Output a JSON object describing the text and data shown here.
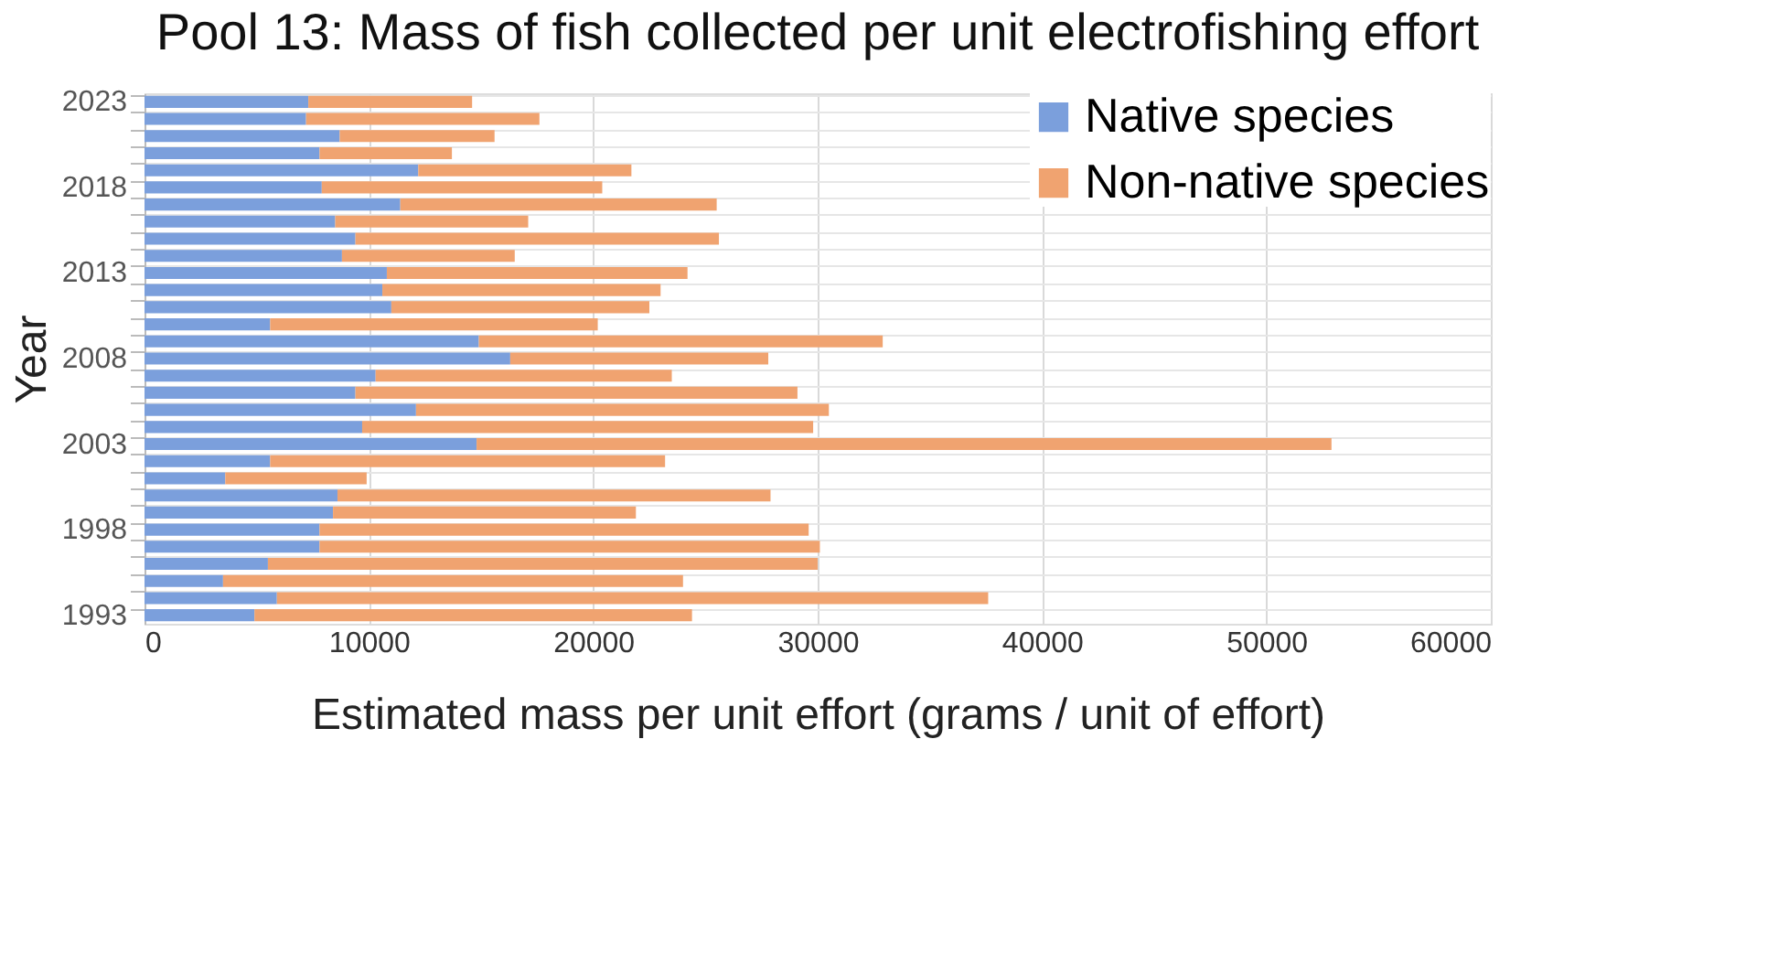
{
  "chart_data": {
    "type": "bar",
    "orientation": "horizontal",
    "stacked": true,
    "title": "Pool 13: Mass of fish collected per unit electrofishing effort",
    "xlabel": "Estimated mass per unit effort (grams / unit of effort)",
    "ylabel": "Year",
    "categories": [
      "2023",
      null,
      null,
      null,
      null,
      "2018",
      null,
      null,
      null,
      null,
      "2013",
      null,
      null,
      null,
      null,
      "2008",
      null,
      null,
      null,
      null,
      "2003",
      null,
      null,
      null,
      null,
      "1998",
      null,
      null,
      null,
      null,
      "1993"
    ],
    "series": [
      {
        "name": "Native species",
        "color": "#7b9fdc",
        "values": [
          7300,
          7200,
          8700,
          7800,
          12200,
          7900,
          11400,
          8500,
          9400,
          8800,
          10800,
          10600,
          11000,
          5600,
          14900,
          16300,
          10300,
          9400,
          12100,
          9700,
          14800,
          5600,
          3600,
          8600,
          8400,
          7800,
          7800,
          5500,
          3500,
          5900,
          4900
        ]
      },
      {
        "name": "Non-native species",
        "color": "#f0a370",
        "values": [
          7300,
          10400,
          6900,
          5900,
          9500,
          12500,
          14100,
          8600,
          16200,
          7700,
          13400,
          12400,
          11500,
          14600,
          18000,
          11500,
          13200,
          19700,
          18400,
          20100,
          38100,
          17600,
          6300,
          19300,
          13500,
          21800,
          22300,
          24500,
          20500,
          31700,
          19500
        ]
      }
    ],
    "xlim": [
      0,
      60000
    ],
    "xticks": [
      0,
      10000,
      20000,
      30000,
      40000,
      50000,
      60000
    ],
    "grid": true,
    "legend": "top right"
  }
}
